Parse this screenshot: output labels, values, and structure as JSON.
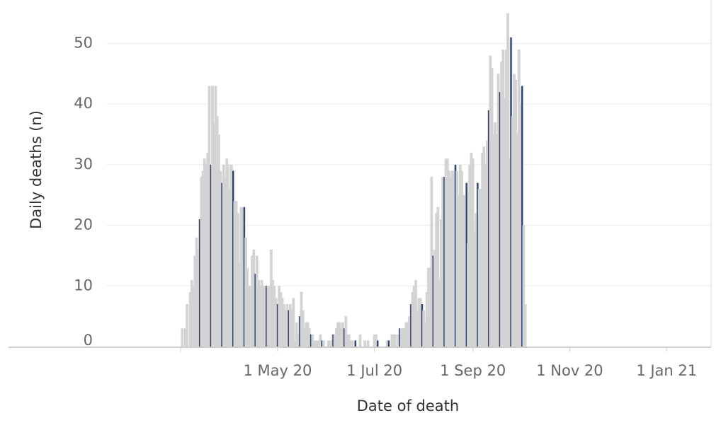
{
  "chart_data": {
    "type": "bar",
    "title": "",
    "xlabel": "Date of death",
    "ylabel": "Daily deaths (n)",
    "x_axis": {
      "type": "date",
      "range": [
        "2020-01-15",
        "2021-01-29"
      ],
      "ticks": [
        {
          "date": "2020-05-01",
          "label": "1 May 20"
        },
        {
          "date": "2020-07-01",
          "label": "1 Jul 20"
        },
        {
          "date": "2020-09-01",
          "label": "1 Sep 20"
        },
        {
          "date": "2020-11-01",
          "label": "1 Nov 20"
        },
        {
          "date": "2021-01-01",
          "label": "1 Jan 21"
        }
      ]
    },
    "y_axis": {
      "range": [
        0,
        57
      ],
      "ticks": [
        0,
        10,
        20,
        30,
        40,
        50
      ]
    },
    "grid": "horizontal",
    "bar_colors": {
      "daily": "#d3d3d3",
      "weekly_marker": "#2b3f73"
    },
    "series": [
      {
        "start_date": "2020-03-02",
        "daily_deaths": [
          3,
          0,
          3,
          7,
          0,
          9,
          11,
          10,
          15,
          18,
          16,
          21,
          28,
          29,
          31,
          30,
          32,
          43,
          30,
          43,
          37,
          43,
          38,
          35,
          29,
          27,
          30,
          28,
          31,
          30,
          26,
          30,
          29,
          24,
          24,
          22,
          14,
          23,
          23,
          23,
          18,
          13,
          10,
          10,
          15,
          16,
          12,
          15,
          11,
          10,
          11,
          10,
          10,
          10,
          10,
          10,
          16,
          11,
          10,
          8,
          7,
          10,
          9,
          8,
          7,
          6,
          7,
          6,
          7,
          6,
          8,
          1,
          4,
          2,
          5,
          9,
          6,
          3,
          4,
          4,
          3,
          2,
          2,
          1,
          1,
          1,
          1,
          2,
          1,
          1,
          0,
          0,
          1,
          1,
          1,
          2,
          2,
          3,
          4,
          4,
          3,
          4,
          3,
          5,
          2,
          2,
          1,
          1,
          0,
          1,
          0,
          0,
          2,
          0,
          0,
          1,
          0,
          1,
          0,
          0,
          0,
          2,
          2,
          1,
          0,
          0,
          0,
          0,
          0,
          1,
          1,
          0,
          2,
          2,
          2,
          0,
          2,
          3,
          3,
          3,
          3,
          4,
          4,
          5,
          7,
          9,
          10,
          11,
          6,
          8,
          8,
          7,
          6,
          4,
          9,
          13,
          13,
          28,
          15,
          16,
          22,
          23,
          11,
          21,
          28,
          28,
          31,
          31,
          29,
          28,
          29,
          29,
          30,
          29,
          25,
          30,
          29,
          25,
          25,
          27,
          17,
          30,
          32,
          31,
          19,
          22,
          27,
          26,
          26,
          32,
          33,
          30,
          34,
          39,
          48,
          46,
          35,
          37,
          35,
          45,
          42,
          47,
          49,
          41,
          49,
          55,
          31,
          51,
          38,
          45,
          44,
          35,
          49,
          40,
          43,
          20,
          7
        ]
      }
    ]
  }
}
